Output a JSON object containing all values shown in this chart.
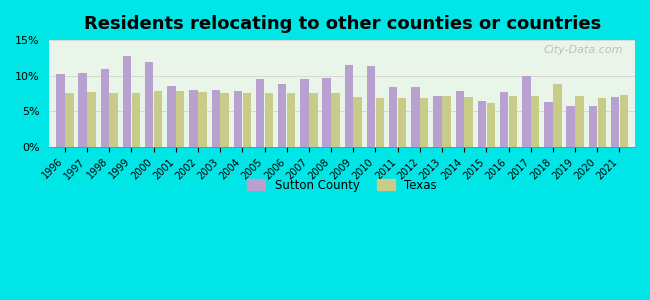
{
  "years": [
    1996,
    1997,
    1998,
    1999,
    2000,
    2001,
    2002,
    2003,
    2004,
    2005,
    2006,
    2007,
    2008,
    2009,
    2010,
    2011,
    2012,
    2013,
    2014,
    2015,
    2016,
    2017,
    2018,
    2019,
    2020,
    2021
  ],
  "sutton": [
    10.2,
    10.4,
    11.0,
    12.8,
    11.9,
    8.5,
    8.0,
    8.0,
    7.8,
    9.5,
    8.8,
    9.6,
    9.7,
    11.5,
    11.3,
    8.4,
    8.4,
    7.1,
    7.8,
    6.5,
    7.7,
    9.9,
    6.3,
    5.8,
    5.8,
    7.0
  ],
  "texas": [
    7.6,
    7.7,
    7.6,
    7.6,
    7.9,
    7.9,
    7.7,
    7.6,
    7.5,
    7.5,
    7.5,
    7.5,
    7.5,
    7.0,
    6.8,
    6.8,
    6.8,
    7.2,
    7.0,
    6.1,
    7.1,
    7.2,
    8.8,
    7.1,
    6.8,
    7.3
  ],
  "sutton_color": "#b8a0d0",
  "texas_color": "#c8cc88",
  "background_color": "#eaf5ea",
  "outer_background": "#00e5e5",
  "title": "Residents relocating to other counties or countries",
  "title_fontsize": 13,
  "ylabel_ticks": [
    "0%",
    "5%",
    "10%",
    "15%"
  ],
  "ytick_vals": [
    0,
    5,
    10,
    15
  ],
  "ylim": [
    0,
    15
  ],
  "legend_sutton": "Sutton County",
  "legend_texas": "Texas"
}
